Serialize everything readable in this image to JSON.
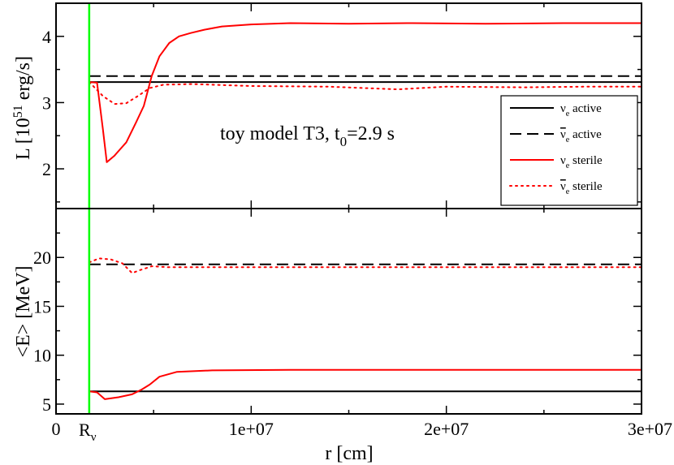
{
  "chart_data": [
    {
      "type": "line",
      "panel": "top",
      "ylabel_main": "L [10",
      "ylabel_exp": "51",
      "ylabel_tail": " erg/s]",
      "xlim": [
        0,
        30000000
      ],
      "ylim": [
        1.4,
        4.5
      ],
      "yticks": [
        2,
        3,
        4
      ],
      "annotation": {
        "main": "toy model T3, t",
        "sub": "0",
        "tail": "=2.9 s"
      },
      "vline_x": 1700000,
      "legend_position": "right",
      "series": [
        {
          "name": "active",
          "flavor": "ν",
          "sub": "e",
          "bar": false,
          "color": "#000000",
          "dash": "solid",
          "x": [
            1700000,
            30000000
          ],
          "y": [
            3.31,
            3.31
          ]
        },
        {
          "name": "active",
          "flavor": "ν",
          "sub": "e",
          "bar": true,
          "color": "#000000",
          "dash": "dashed",
          "x": [
            1700000,
            30000000
          ],
          "y": [
            3.4,
            3.4
          ]
        },
        {
          "name": "sterile",
          "flavor": "ν",
          "sub": "e",
          "bar": false,
          "color": "#ff0000",
          "dash": "solid",
          "x": [
            1700000,
            2100000,
            2400000,
            2600000,
            3000000,
            3300000,
            3600000,
            4100000,
            4500000,
            4900000,
            5300000,
            5800000,
            6300000,
            6900000,
            7600000,
            8500000,
            10000000,
            12000000,
            15000000,
            18000000,
            22000000,
            26000000,
            30000000
          ],
          "y": [
            3.31,
            3.3,
            2.6,
            2.1,
            2.2,
            2.3,
            2.4,
            2.7,
            2.95,
            3.4,
            3.7,
            3.9,
            4.0,
            4.05,
            4.1,
            4.15,
            4.18,
            4.2,
            4.19,
            4.2,
            4.19,
            4.2,
            4.2
          ]
        },
        {
          "name": "sterile",
          "flavor": "ν",
          "sub": "e",
          "bar": true,
          "color": "#ff0000",
          "dash": "dotted",
          "x": [
            1700000,
            2400000,
            3000000,
            3600000,
            4200000,
            4800000,
            5500000,
            7000000,
            10000000,
            14000000,
            17500000,
            20000000,
            24000000,
            27000000,
            30000000
          ],
          "y": [
            3.31,
            3.1,
            2.98,
            2.99,
            3.1,
            3.22,
            3.27,
            3.28,
            3.25,
            3.24,
            3.2,
            3.24,
            3.23,
            3.24,
            3.24
          ]
        }
      ]
    },
    {
      "type": "line",
      "panel": "bottom",
      "ylabel": "<E> [MeV]",
      "xlabel": "r [cm]",
      "xlim": [
        0,
        30000000
      ],
      "ylim": [
        4,
        25
      ],
      "yticks": [
        5,
        10,
        15,
        20
      ],
      "xticks": [
        0,
        10000000,
        20000000,
        30000000
      ],
      "xticklabels": [
        "0",
        "1e+07",
        "2e+07",
        "3e+07"
      ],
      "marker_label": "R",
      "marker_sub": "ν",
      "vline_x": 1700000,
      "series": [
        {
          "name": "active",
          "flavor": "ν",
          "sub": "e",
          "bar": false,
          "color": "#000000",
          "dash": "solid",
          "x": [
            1700000,
            30000000
          ],
          "y": [
            6.3,
            6.3
          ]
        },
        {
          "name": "active",
          "flavor": "ν",
          "sub": "e",
          "bar": true,
          "color": "#000000",
          "dash": "dashed",
          "x": [
            1700000,
            30000000
          ],
          "y": [
            19.3,
            19.3
          ]
        },
        {
          "name": "sterile",
          "flavor": "ν",
          "sub": "e",
          "bar": false,
          "color": "#ff0000",
          "dash": "solid",
          "x": [
            1700000,
            2100000,
            2500000,
            3200000,
            3900000,
            4400000,
            4800000,
            5300000,
            6200000,
            8000000,
            12000000,
            20000000,
            30000000
          ],
          "y": [
            6.3,
            6.2,
            5.5,
            5.7,
            6.0,
            6.5,
            7.0,
            7.8,
            8.3,
            8.45,
            8.5,
            8.5,
            8.5
          ]
        },
        {
          "name": "sterile",
          "flavor": "ν",
          "sub": "e",
          "bar": true,
          "color": "#ff0000",
          "dash": "dotted",
          "x": [
            1700000,
            2200000,
            2800000,
            3400000,
            3900000,
            4300000,
            4900000,
            5800000,
            8000000,
            14000000,
            20000000,
            30000000
          ],
          "y": [
            19.5,
            19.9,
            19.8,
            19.4,
            18.4,
            18.7,
            19.1,
            19.0,
            19.0,
            19.0,
            19.0,
            19.0
          ]
        }
      ]
    }
  ],
  "colors": {
    "marker_line": "#00ff00",
    "active": "#000000",
    "sterile": "#ff0000"
  }
}
